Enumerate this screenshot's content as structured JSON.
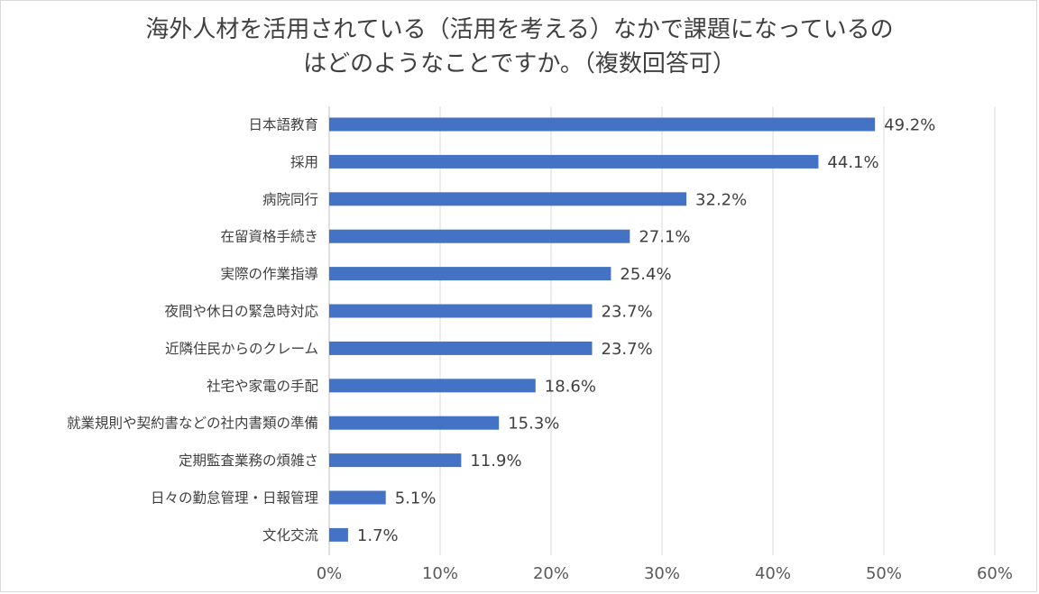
{
  "chart_data": {
    "type": "bar",
    "orientation": "horizontal",
    "title_lines": [
      "海外人材を活用されている（活用を考える）なかで課題になっているの",
      "はどのようなことですか。（複数回答可）"
    ],
    "categories": [
      "日本語教育",
      "採用",
      "病院同行",
      "在留資格手続き",
      "実際の作業指導",
      "夜間や休日の緊急時対応",
      "近隣住民からのクレーム",
      "社宅や家電の手配",
      "就業規則や契約書などの社内書類の準備",
      "定期監査業務の煩雑さ",
      "日々の勤怠管理・日報管理",
      "文化交流"
    ],
    "values": [
      49.2,
      44.1,
      32.2,
      27.1,
      25.4,
      23.7,
      23.7,
      18.6,
      15.3,
      11.9,
      5.1,
      1.7
    ],
    "value_labels": [
      "49.2%",
      "44.1%",
      "32.2%",
      "27.1%",
      "25.4%",
      "23.7%",
      "23.7%",
      "18.6%",
      "15.3%",
      "11.9%",
      "5.1%",
      "1.7%"
    ],
    "x_ticks": [
      0,
      10,
      20,
      30,
      40,
      50,
      60
    ],
    "x_tick_labels": [
      "0%",
      "10%",
      "20%",
      "30%",
      "40%",
      "50%",
      "60%"
    ],
    "xlim": [
      0,
      60
    ],
    "xlabel": "",
    "ylabel": "",
    "grid": "vertical",
    "legend": "none",
    "bar_color": "#4472C4"
  }
}
